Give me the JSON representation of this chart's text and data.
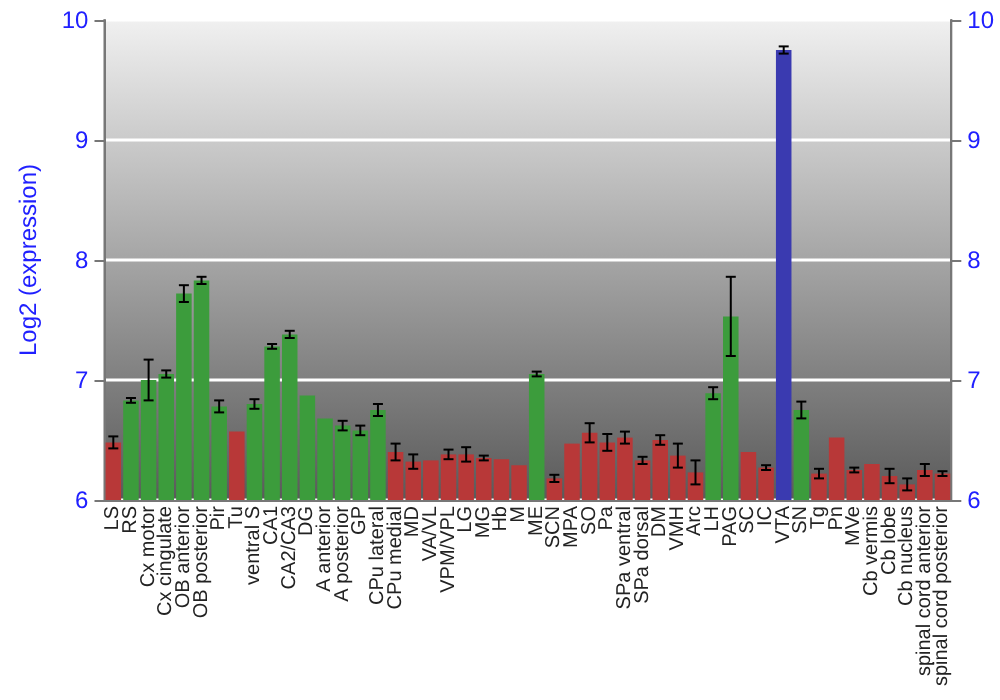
{
  "chart_data": {
    "type": "bar",
    "ylabel": "Log2 (expression)",
    "categories": [
      "LS",
      "RS",
      "Cx motor",
      "Cx cingulate",
      "OB anterior",
      "OB posterior",
      "Pir",
      "Tu",
      "ventral S",
      "CA1",
      "CA2/CA3",
      "DG",
      "A anterior",
      "A posterior",
      "GP",
      "CPu lateral",
      "CPu medial",
      "MD",
      "VA/VL",
      "VPM/VPL",
      "LG",
      "MG",
      "Hb",
      "M",
      "ME",
      "SCN",
      "MPA",
      "SO",
      "Pa",
      "SPa ventral",
      "SPa dorsal",
      "DM",
      "VMH",
      "Arc",
      "LH",
      "PAG",
      "SC",
      "IC",
      "VTA",
      "SN",
      "Tg",
      "Pn",
      "MVe",
      "Cb vermis",
      "Cb lobe",
      "Cb nucleus",
      "spinal cord anterior",
      "spinal cord posterior"
    ],
    "values": [
      6.48,
      6.83,
      7.0,
      7.05,
      7.72,
      7.83,
      6.78,
      6.57,
      6.8,
      7.28,
      7.38,
      6.87,
      6.68,
      6.62,
      6.58,
      6.75,
      6.4,
      6.32,
      6.33,
      6.38,
      6.38,
      6.35,
      6.34,
      6.29,
      7.05,
      6.18,
      6.47,
      6.56,
      6.48,
      6.52,
      6.33,
      6.5,
      6.37,
      6.23,
      6.89,
      7.53,
      6.4,
      6.27,
      9.75,
      6.75,
      6.22,
      6.52,
      6.25,
      6.3,
      6.2,
      6.13,
      6.25,
      6.22
    ],
    "errors": [
      0.05,
      0.02,
      0.17,
      0.03,
      0.07,
      0.03,
      0.05,
      null,
      0.04,
      0.02,
      0.03,
      null,
      null,
      0.04,
      0.04,
      0.05,
      0.07,
      0.06,
      null,
      0.04,
      0.06,
      0.02,
      null,
      null,
      0.02,
      0.03,
      null,
      0.08,
      0.07,
      0.05,
      0.03,
      0.04,
      0.1,
      0.1,
      0.05,
      0.33,
      null,
      0.02,
      0.03,
      0.07,
      0.04,
      null,
      0.02,
      null,
      0.06,
      0.05,
      0.05,
      0.02
    ],
    "colors": [
      "#b83838",
      "#3c9c3c",
      "#3c9c3c",
      "#3c9c3c",
      "#3c9c3c",
      "#3c9c3c",
      "#3c9c3c",
      "#b83838",
      "#3c9c3c",
      "#3c9c3c",
      "#3c9c3c",
      "#3c9c3c",
      "#3c9c3c",
      "#3c9c3c",
      "#3c9c3c",
      "#3c9c3c",
      "#b83838",
      "#b83838",
      "#b83838",
      "#b83838",
      "#b83838",
      "#b83838",
      "#b83838",
      "#b83838",
      "#3c9c3c",
      "#b83838",
      "#b83838",
      "#b83838",
      "#b83838",
      "#b83838",
      "#b83838",
      "#b83838",
      "#b83838",
      "#b83838",
      "#3c9c3c",
      "#3c9c3c",
      "#b83838",
      "#b83838",
      "#3a3ab0",
      "#3c9c3c",
      "#b83838",
      "#b83838",
      "#b83838",
      "#b83838",
      "#b83838",
      "#b83838",
      "#b83838",
      "#b83838"
    ],
    "ylim": [
      6,
      10
    ],
    "yticks": [
      6,
      7,
      8,
      9,
      10
    ],
    "y2lim": [
      6,
      10
    ],
    "y2ticks": [
      6,
      7,
      8,
      9,
      10
    ],
    "grid": "y"
  }
}
